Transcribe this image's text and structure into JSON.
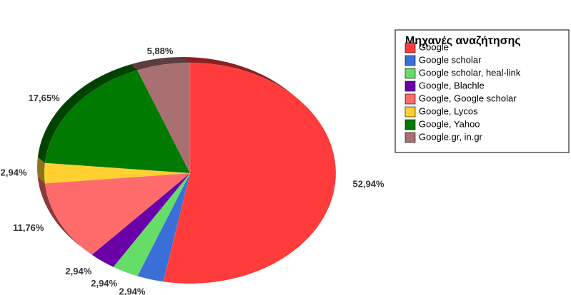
{
  "chart_data": {
    "type": "pie",
    "legend_title": "Μηχανές αναζήτησης",
    "categories": [
      "Google",
      "Google scholar",
      "Google scholar, heal-link",
      "Google, Blachle",
      "Google, Google scholar",
      "Google, Lycos",
      "Google, Yahoo",
      "Google.gr, in.gr"
    ],
    "values": [
      52.94,
      2.94,
      2.94,
      2.94,
      11.76,
      2.94,
      17.65,
      5.88
    ],
    "value_labels": [
      "52,94%",
      "2,94%",
      "2,94%",
      "2,94%",
      "11,76%",
      "2,94%",
      "17,65%",
      "5,88%"
    ],
    "colors": [
      "#ff3b3b",
      "#3a6fd8",
      "#66dd66",
      "#6a00a8",
      "#ff6b6b",
      "#ffd030",
      "#007a00",
      "#a87070"
    ],
    "legend": "right"
  }
}
